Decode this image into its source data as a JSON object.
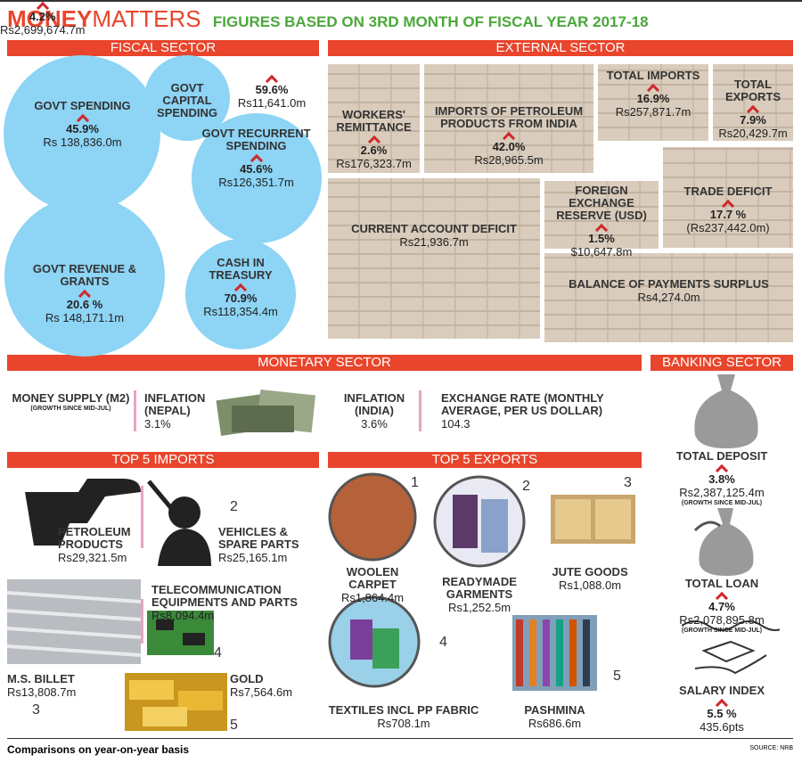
{
  "header": {
    "title_bold": "MONEY",
    "title_light": "MATTERS",
    "subtitle": "FIGURES BASED ON 3RD MONTH OF FISCAL YEAR 2017-18"
  },
  "fiscal": {
    "heading": "FISCAL SECTOR",
    "items": [
      {
        "label": "GOVT SPENDING",
        "change": "45.9%",
        "value": "Rs 138,836.0m"
      },
      {
        "label": "GOVT CAPITAL SPENDING",
        "change": "59.6%",
        "value": "Rs11,641.0m"
      },
      {
        "label": "GOVT RECURRENT SPENDING",
        "change": "45.6%",
        "value": "Rs126,351.7m"
      },
      {
        "label": "GOVT REVENUE & GRANTS",
        "change": "20.6 %",
        "value": "Rs 148,171.1m"
      },
      {
        "label": "CASH IN TREASURY",
        "change": "70.9%",
        "value": "Rs118,354.4m"
      }
    ]
  },
  "external": {
    "heading": "EXTERNAL SECTOR",
    "items": [
      {
        "label": "WORKERS' REMITTANCE",
        "change": "2.6%",
        "value": "Rs176,323.7m"
      },
      {
        "label": "IMPORTS OF PETROLEUM PRODUCTS FROM INDIA",
        "change": "42.0%",
        "value": "Rs28,965.5m"
      },
      {
        "label": "TOTAL IMPORTS",
        "change": "16.9%",
        "value": "Rs257,871.7m"
      },
      {
        "label": "TOTAL EXPORTS",
        "change": "7.9%",
        "value": "Rs20,429.7m"
      },
      {
        "label": "CURRENT ACCOUNT DEFICIT",
        "value": "Rs21,936.7m"
      },
      {
        "label": "FOREIGN EXCHANGE RESERVE (USD)",
        "change": "1.5%",
        "value": "$10,647.8m"
      },
      {
        "label": "TRADE DEFICIT",
        "change": "17.7 %",
        "value": "(Rs237,442.0m)"
      },
      {
        "label": "BALANCE OF PAYMENTS SURPLUS",
        "value": "Rs4,274.0m"
      }
    ]
  },
  "monetary": {
    "heading": "MONETARY SECTOR",
    "items": [
      {
        "label": "MONEY SUPPLY (M2)",
        "note": "(GROWTH SINCE MID-JUL)",
        "change": "4.2%",
        "value": "Rs2,699,674.7m"
      },
      {
        "label": "INFLATION (NEPAL)",
        "value": "3.1%"
      },
      {
        "label": "INFLATION (INDIA)",
        "value": "3.6%"
      },
      {
        "label": "EXCHANGE RATE (MONTHLY AVERAGE, PER US DOLLAR)",
        "value": "104.3"
      }
    ]
  },
  "banking": {
    "heading": "BANKING SECTOR",
    "items": [
      {
        "label": "TOTAL DEPOSIT",
        "change": "3.8%",
        "value": "Rs2,387,125.4m",
        "note": "(GROWTH SINCE MID-JUL)"
      },
      {
        "label": "TOTAL LOAN",
        "change": "4.7%",
        "value": "Rs2,078,895.8m",
        "note": "(GROWTH SINCE MID-JUL)"
      },
      {
        "label": "SALARY INDEX",
        "change": "5.5 %",
        "value": "435.6pts"
      }
    ]
  },
  "imports": {
    "heading": "TOP 5 IMPORTS",
    "items": [
      {
        "name": "PETROLEUM PRODUCTS",
        "value": "Rs29,321.5m"
      },
      {
        "rank": "2",
        "name": "VEHICLES & SPARE PARTS",
        "value": "Rs25,165.1m"
      },
      {
        "rank": "3",
        "name": "M.S. BILLET",
        "value": "Rs13,808.7m"
      },
      {
        "rank": "4",
        "name": "TELECOMMUNICATION EQUIPMENTS AND PARTS",
        "value": "Rs8,094.4m"
      },
      {
        "rank": "5",
        "name": "GOLD",
        "value": "Rs7,564.6m"
      }
    ]
  },
  "exports": {
    "heading": "TOP 5 EXPORTS",
    "items": [
      {
        "rank": "1",
        "name": "WOOLEN CARPET",
        "value": "Rs1,864.4m"
      },
      {
        "rank": "2",
        "name": "READYMADE GARMENTS",
        "value": "Rs1,252.5m"
      },
      {
        "rank": "3",
        "name": "JUTE GOODS",
        "value": "Rs1,088.0m"
      },
      {
        "rank": "4",
        "name": "TEXTILES INCL PP FABRIC",
        "value": "Rs708.1m"
      },
      {
        "rank": "5",
        "name": "PASHMINA",
        "value": "Rs686.6m"
      }
    ]
  },
  "footer": {
    "note": "Comparisons on year-on-year basis",
    "source": "SOURCE: NRB"
  }
}
